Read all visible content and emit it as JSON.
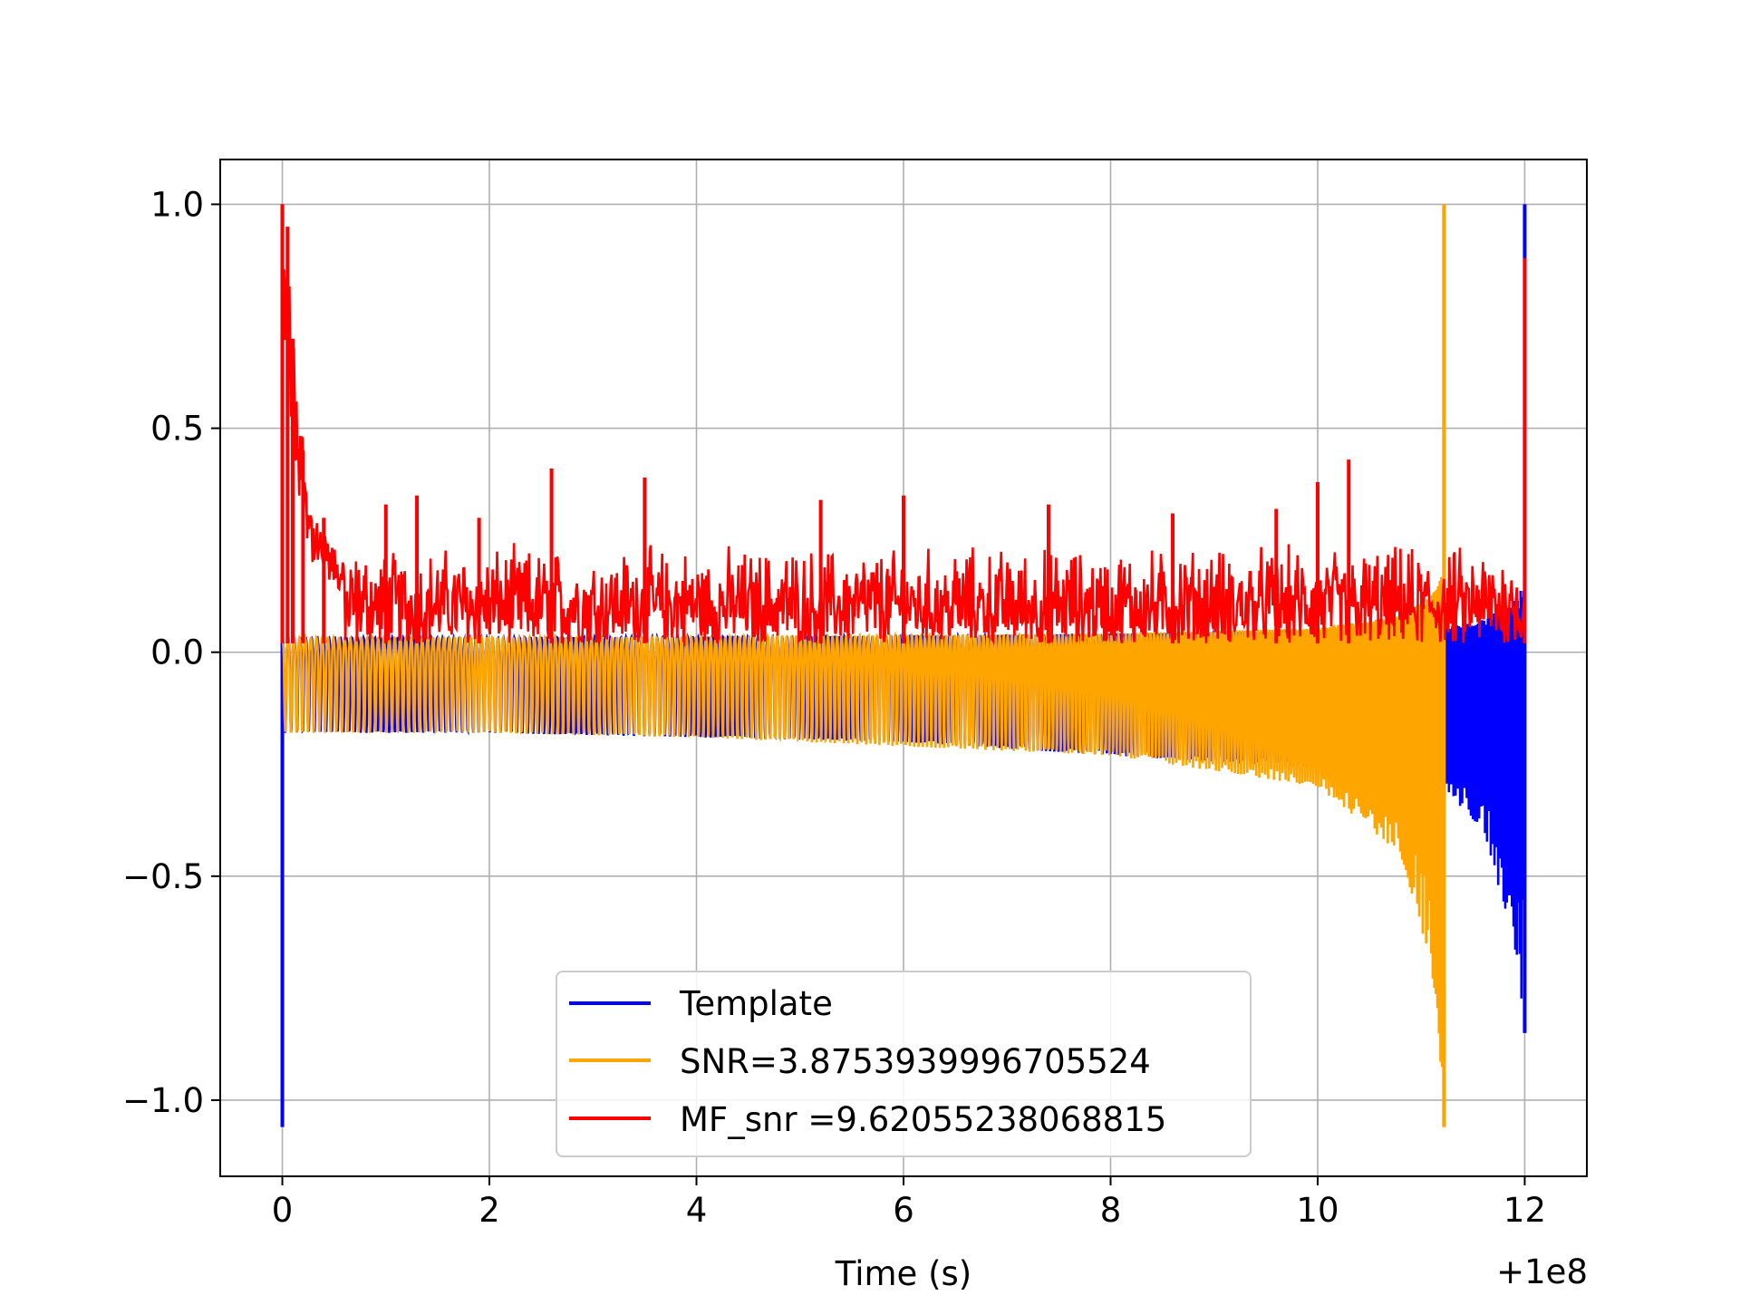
{
  "chart_data": {
    "type": "line",
    "title": "",
    "xlabel": "Time (s)",
    "ylabel": "",
    "x_offset_label": "+1e8",
    "xlim": [
      -0.6,
      12.6
    ],
    "ylim": [
      -1.17,
      1.1
    ],
    "x_ticks": [
      {
        "value": 0,
        "label": "0"
      },
      {
        "value": 2,
        "label": "2"
      },
      {
        "value": 4,
        "label": "4"
      },
      {
        "value": 6,
        "label": "6"
      },
      {
        "value": 8,
        "label": "8"
      },
      {
        "value": 10,
        "label": "10"
      },
      {
        "value": 12,
        "label": "12"
      }
    ],
    "y_ticks": [
      {
        "value": 1.0,
        "label": "1.0"
      },
      {
        "value": 0.5,
        "label": "0.5"
      },
      {
        "value": 0.0,
        "label": "0.0"
      },
      {
        "value": -0.5,
        "label": "−0.5"
      },
      {
        "value": -1.0,
        "label": "−1.0"
      }
    ],
    "grid": true,
    "legend_position": "lower-center",
    "series": [
      {
        "name": "Template",
        "color": "#0000ff",
        "style": "chirp",
        "x_start": 0.0,
        "x_end": 12.0,
        "peak_start": [
          0.0,
          1.0,
          -1.06
        ],
        "envelope": [
          [
            0.05,
            0.18
          ],
          [
            2,
            0.18
          ],
          [
            4,
            0.19
          ],
          [
            6,
            0.2
          ],
          [
            8,
            0.23
          ],
          [
            10,
            0.26
          ],
          [
            11.2,
            0.3
          ],
          [
            11.6,
            0.4
          ],
          [
            11.9,
            0.65
          ],
          [
            12.0,
            0.85
          ]
        ],
        "end_peak": [
          12.0,
          1.0,
          -0.85
        ]
      },
      {
        "name": "SNR=3.8753939996705524",
        "color": "#ffa500",
        "style": "chirp",
        "x_start": 0.0,
        "x_end": 11.22,
        "envelope": [
          [
            0.05,
            0.18
          ],
          [
            2,
            0.18
          ],
          [
            4,
            0.19
          ],
          [
            6,
            0.21
          ],
          [
            8,
            0.23
          ],
          [
            10,
            0.3
          ],
          [
            10.8,
            0.45
          ],
          [
            11.1,
            0.7
          ],
          [
            11.22,
            1.0
          ]
        ],
        "end_peak": [
          11.22,
          1.0,
          -1.06
        ]
      },
      {
        "name": "MF_snr =9.62055238068815",
        "color": "#ff0000",
        "style": "noise",
        "x_start": 0.0,
        "x_end": 12.0,
        "baseline": 0.02,
        "typical_max": 0.25,
        "spikes": [
          [
            0.0,
            1.0
          ],
          [
            0.05,
            0.95
          ],
          [
            0.1,
            0.7
          ],
          [
            0.2,
            0.45
          ],
          [
            0.4,
            0.3
          ],
          [
            1.0,
            0.33
          ],
          [
            1.3,
            0.35
          ],
          [
            1.9,
            0.3
          ],
          [
            2.6,
            0.41
          ],
          [
            3.5,
            0.39
          ],
          [
            5.2,
            0.34
          ],
          [
            6.0,
            0.35
          ],
          [
            7.4,
            0.33
          ],
          [
            8.6,
            0.31
          ],
          [
            9.6,
            0.32
          ],
          [
            10.0,
            0.38
          ],
          [
            10.3,
            0.43
          ],
          [
            12.0,
            0.88
          ]
        ]
      }
    ]
  }
}
